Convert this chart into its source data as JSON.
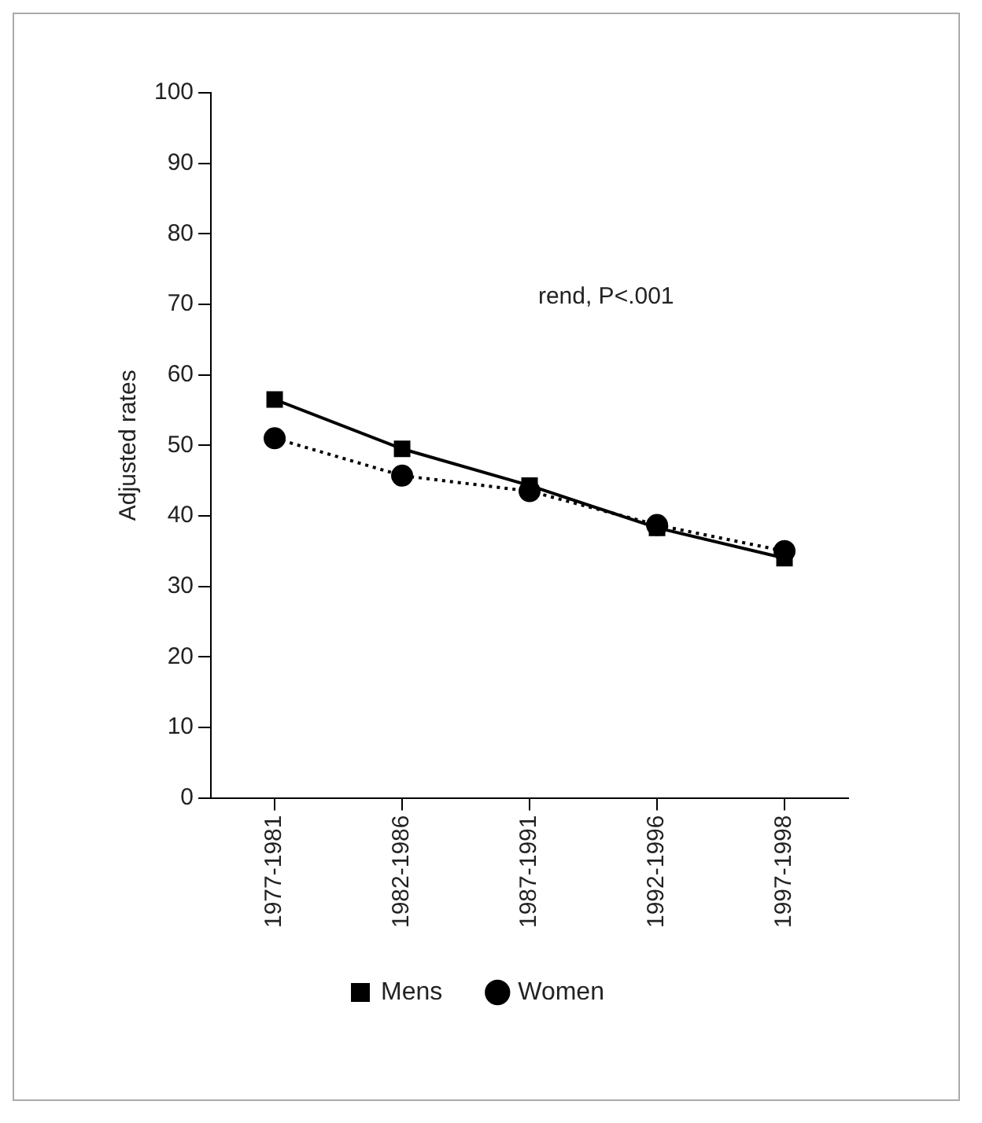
{
  "chart_data": {
    "type": "line",
    "ylabel": "Adjusted rates",
    "categories": [
      "1977-1981",
      "1982-1986",
      "1987-1991",
      "1992-1996",
      "1997-1998"
    ],
    "series": [
      {
        "name": "Mens",
        "color": "#000000",
        "values": [
          56.5,
          49.5,
          44.3,
          38.3,
          34.0
        ],
        "marker": "square",
        "line_style": "solid"
      },
      {
        "name": "Women",
        "color": "#000000",
        "values": [
          51,
          45.7,
          43.5,
          38.7,
          35
        ],
        "marker": "circle",
        "line_style": "dotted"
      }
    ],
    "ylim": [
      0,
      100
    ],
    "yticks": [
      0,
      10,
      20,
      30,
      40,
      50,
      60,
      70,
      80,
      90,
      100
    ],
    "annotations": [
      "rend, P<.001"
    ],
    "legend": "bottom",
    "grid": false
  }
}
